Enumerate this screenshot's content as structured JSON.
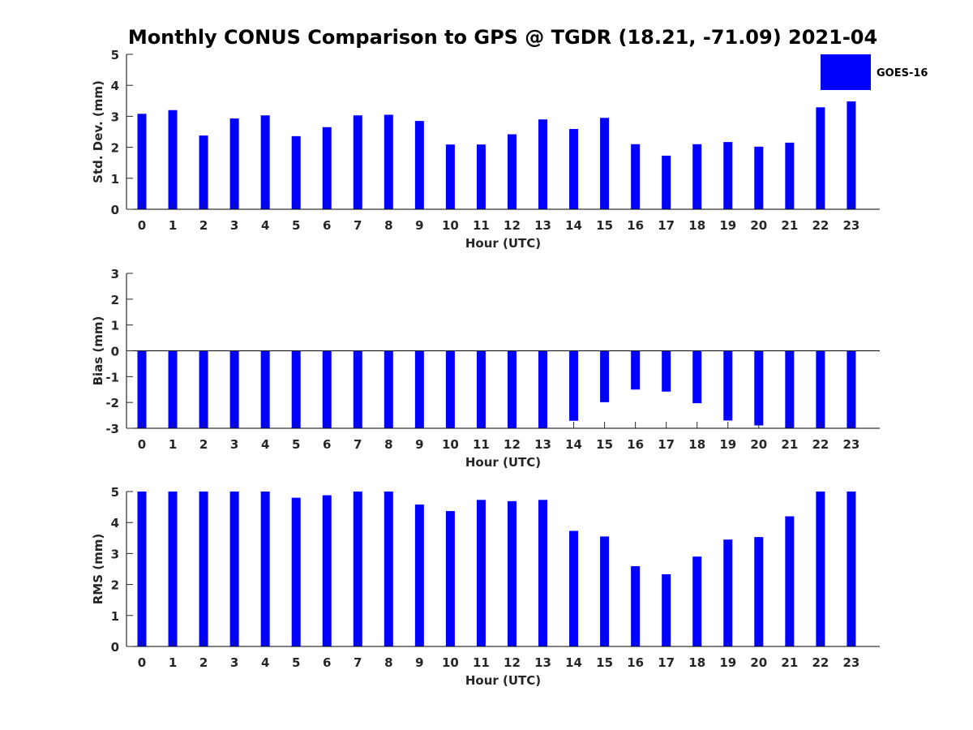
{
  "title": "Monthly CONUS Comparison to GPS @ TGDR (18.21, -71.09) 2021-04",
  "legend": {
    "label": "GOES-16",
    "color": "#0000ff"
  },
  "chart_data": [
    {
      "type": "bar",
      "name": "std-dev",
      "categories": [
        "0",
        "1",
        "2",
        "3",
        "4",
        "5",
        "6",
        "7",
        "8",
        "9",
        "10",
        "11",
        "12",
        "13",
        "14",
        "15",
        "16",
        "17",
        "18",
        "19",
        "20",
        "21",
        "22",
        "23"
      ],
      "series": [
        {
          "name": "GOES-16",
          "values": [
            3.08,
            3.2,
            2.38,
            2.93,
            3.03,
            2.36,
            2.65,
            3.03,
            3.05,
            2.85,
            2.09,
            2.09,
            2.42,
            2.9,
            2.59,
            2.95,
            2.1,
            1.73,
            2.1,
            2.17,
            2.02,
            2.15,
            3.29,
            3.48
          ]
        }
      ],
      "xlabel": "Hour (UTC)",
      "ylabel": "Std. Dev. (mm)",
      "ylim": [
        0,
        5
      ],
      "yticks": [
        "0",
        "1",
        "2",
        "3",
        "4",
        "5"
      ],
      "grid": false,
      "legend_position": "top-right"
    },
    {
      "type": "bar",
      "name": "bias",
      "categories": [
        "0",
        "1",
        "2",
        "3",
        "4",
        "5",
        "6",
        "7",
        "8",
        "9",
        "10",
        "11",
        "12",
        "13",
        "14",
        "15",
        "16",
        "17",
        "18",
        "19",
        "20",
        "21",
        "22",
        "23"
      ],
      "series": [
        {
          "name": "GOES-16",
          "values": [
            -3,
            -3,
            -3,
            -3,
            -3,
            -3,
            -3,
            -3,
            -3,
            -3,
            -3,
            -3,
            -3,
            -3,
            -2.71,
            -1.99,
            -1.5,
            -1.58,
            -2.03,
            -2.7,
            -2.89,
            -3,
            -3,
            -3
          ]
        }
      ],
      "xlabel": "Hour (UTC)",
      "ylabel": "Bias (mm)",
      "ylim": [
        -3,
        3
      ],
      "yticks": [
        "-3",
        "-2",
        "-1",
        "0",
        "1",
        "2",
        "3"
      ],
      "grid": false
    },
    {
      "type": "bar",
      "name": "rms",
      "categories": [
        "0",
        "1",
        "2",
        "3",
        "4",
        "5",
        "6",
        "7",
        "8",
        "9",
        "10",
        "11",
        "12",
        "13",
        "14",
        "15",
        "16",
        "17",
        "18",
        "19",
        "20",
        "21",
        "22",
        "23"
      ],
      "series": [
        {
          "name": "GOES-16",
          "values": [
            5,
            5,
            5,
            5,
            5,
            4.8,
            4.88,
            5,
            5,
            4.58,
            4.37,
            4.73,
            4.69,
            4.73,
            3.73,
            3.55,
            2.59,
            2.33,
            2.9,
            3.45,
            3.53,
            4.2,
            5,
            5
          ]
        }
      ],
      "xlabel": "Hour (UTC)",
      "ylabel": "RMS (mm)",
      "ylim": [
        0,
        5
      ],
      "yticks": [
        "0",
        "1",
        "2",
        "3",
        "4",
        "5"
      ],
      "grid": false
    }
  ]
}
